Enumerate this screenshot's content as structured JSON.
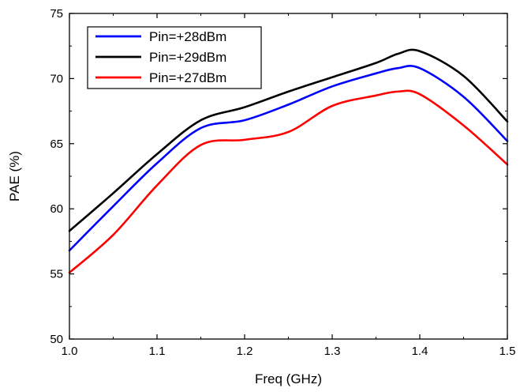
{
  "chart_data": {
    "type": "line",
    "xlabel": "Freq (GHz)",
    "ylabel": "PAE (%)",
    "xlim": [
      1.0,
      1.5
    ],
    "ylim": [
      50,
      75
    ],
    "xticks": [
      1.0,
      1.1,
      1.2,
      1.3,
      1.4,
      1.5
    ],
    "xtick_labels": [
      "1.0",
      "1.1",
      "1.2",
      "1.3",
      "1.4",
      "1.5"
    ],
    "yticks": [
      50,
      55,
      60,
      65,
      70,
      75
    ],
    "ytick_labels": [
      "50",
      "55",
      "60",
      "65",
      "70",
      "75"
    ],
    "grid": false,
    "legend_position": "top-left",
    "series": [
      {
        "name": "Pin=+28dBm",
        "color": "#0000ff",
        "x": [
          1.0,
          1.05,
          1.1,
          1.15,
          1.2,
          1.25,
          1.3,
          1.35,
          1.375,
          1.4,
          1.45,
          1.5
        ],
        "y": [
          56.8,
          60.2,
          63.5,
          66.2,
          66.8,
          68.0,
          69.4,
          70.4,
          70.8,
          70.8,
          68.6,
          65.2
        ]
      },
      {
        "name": "Pin=+29dBm",
        "color": "#000000",
        "x": [
          1.0,
          1.05,
          1.1,
          1.15,
          1.2,
          1.25,
          1.3,
          1.35,
          1.375,
          1.4,
          1.45,
          1.5
        ],
        "y": [
          58.3,
          61.2,
          64.2,
          66.8,
          67.8,
          69.0,
          70.1,
          71.2,
          71.9,
          72.1,
          70.2,
          66.7
        ]
      },
      {
        "name": "Pin=+27dBm",
        "color": "#ff0000",
        "x": [
          1.0,
          1.05,
          1.1,
          1.15,
          1.2,
          1.25,
          1.3,
          1.35,
          1.375,
          1.4,
          1.45,
          1.5
        ],
        "y": [
          55.1,
          58.0,
          61.8,
          64.9,
          65.3,
          65.9,
          67.9,
          68.7,
          69.0,
          68.8,
          66.4,
          63.4
        ]
      }
    ]
  }
}
